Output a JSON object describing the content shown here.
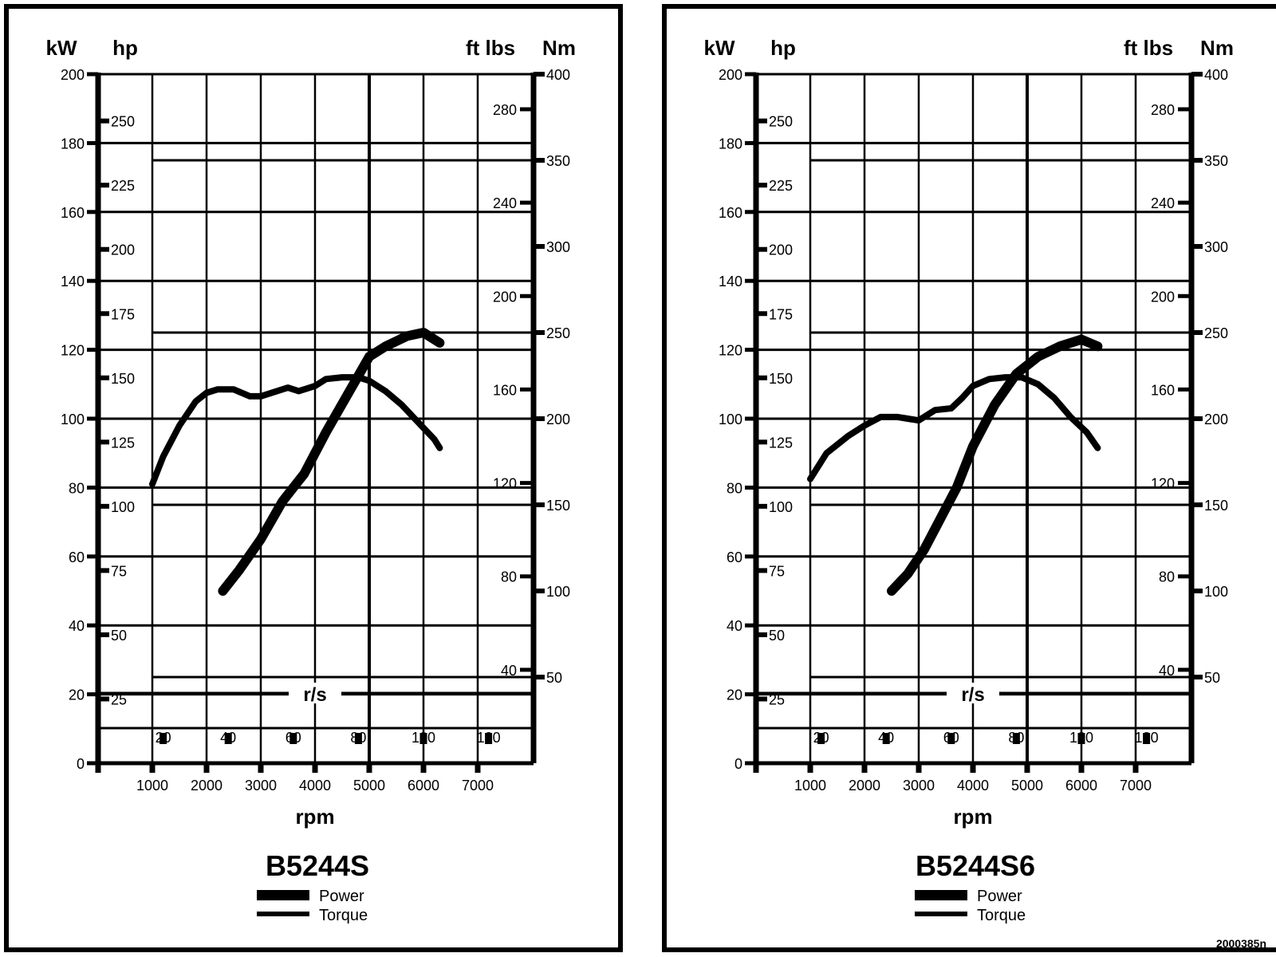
{
  "figure_code": "2000385n",
  "chart_data": [
    {
      "type": "line",
      "title": "B5244S",
      "xlabel": "rpm",
      "x2label": "r/s",
      "x_ticks": [
        1000,
        2000,
        3000,
        4000,
        5000,
        6000,
        7000
      ],
      "x2_ticks": [
        20,
        40,
        60,
        80,
        100,
        120
      ],
      "xlim": [
        0,
        8000
      ],
      "axes": {
        "kw": {
          "label": "kW",
          "ticks": [
            0,
            20,
            40,
            60,
            80,
            100,
            120,
            140,
            160,
            180,
            200
          ],
          "range": [
            0,
            200
          ]
        },
        "hp": {
          "label": "hp",
          "ticks": [
            25,
            50,
            75,
            100,
            125,
            150,
            175,
            200,
            225,
            250
          ]
        },
        "ftlbs": {
          "label": "ft lbs",
          "ticks": [
            40,
            80,
            120,
            160,
            200,
            240,
            280
          ]
        },
        "nm": {
          "label": "Nm",
          "ticks": [
            50,
            100,
            150,
            200,
            250,
            300,
            350,
            400
          ],
          "range": [
            0,
            400
          ]
        }
      },
      "grid": true,
      "legend": [
        {
          "name": "Power",
          "style": "thick"
        },
        {
          "name": "Torque",
          "style": "thin"
        }
      ],
      "series": [
        {
          "name": "Power",
          "unit": "kW",
          "x": [
            2300,
            2600,
            3000,
            3400,
            3800,
            4200,
            4600,
            5000,
            5300,
            5700,
            6000,
            6300
          ],
          "y": [
            50,
            56,
            65,
            76,
            84,
            96,
            107,
            118,
            121,
            124,
            125,
            122
          ]
        },
        {
          "name": "Torque",
          "unit": "Nm",
          "x": [
            1000,
            1200,
            1500,
            1800,
            2000,
            2200,
            2500,
            2800,
            3000,
            3200,
            3500,
            3700,
            4000,
            4200,
            4500,
            4800,
            5000,
            5300,
            5600,
            5900,
            6200,
            6300
          ],
          "y": [
            162,
            178,
            196,
            210,
            215,
            217,
            217,
            213,
            213,
            215,
            218,
            216,
            219,
            223,
            224,
            224,
            222,
            216,
            208,
            198,
            188,
            183
          ]
        }
      ]
    },
    {
      "type": "line",
      "title": "B5244S6",
      "xlabel": "rpm",
      "x2label": "r/s",
      "x_ticks": [
        1000,
        2000,
        3000,
        4000,
        5000,
        6000,
        7000
      ],
      "x2_ticks": [
        20,
        40,
        60,
        80,
        100,
        120
      ],
      "xlim": [
        0,
        8000
      ],
      "axes": {
        "kw": {
          "label": "kW",
          "ticks": [
            0,
            20,
            40,
            60,
            80,
            100,
            120,
            140,
            160,
            180,
            200
          ],
          "range": [
            0,
            200
          ]
        },
        "hp": {
          "label": "hp",
          "ticks": [
            25,
            50,
            75,
            100,
            125,
            150,
            175,
            200,
            225,
            250
          ]
        },
        "ftlbs": {
          "label": "ft lbs",
          "ticks": [
            40,
            80,
            120,
            160,
            200,
            240,
            280
          ]
        },
        "nm": {
          "label": "Nm",
          "ticks": [
            50,
            100,
            150,
            200,
            250,
            300,
            350,
            400
          ],
          "range": [
            0,
            400
          ]
        }
      },
      "grid": true,
      "legend": [
        {
          "name": "Power",
          "style": "thick"
        },
        {
          "name": "Torque",
          "style": "thin"
        }
      ],
      "series": [
        {
          "name": "Power",
          "unit": "kW",
          "x": [
            2500,
            2800,
            3100,
            3400,
            3700,
            4000,
            4400,
            4800,
            5200,
            5600,
            6000,
            6300
          ],
          "y": [
            50,
            55,
            62,
            71,
            80,
            92,
            104,
            113,
            118,
            121,
            123,
            121
          ]
        },
        {
          "name": "Torque",
          "unit": "Nm",
          "x": [
            1000,
            1300,
            1700,
            2000,
            2300,
            2600,
            2800,
            3000,
            3300,
            3600,
            3800,
            4000,
            4300,
            4600,
            4900,
            5200,
            5500,
            5800,
            6100,
            6300
          ],
          "y": [
            165,
            180,
            190,
            196,
            201,
            201,
            200,
            199,
            205,
            206,
            212,
            219,
            223,
            224,
            224,
            220,
            212,
            201,
            192,
            183
          ]
        }
      ]
    }
  ]
}
